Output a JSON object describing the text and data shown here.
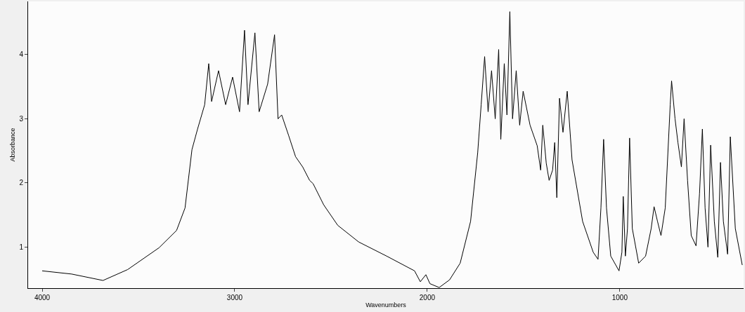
{
  "chart_data": {
    "type": "line",
    "xlabel": "Wavenumbers",
    "ylabel": "Absorbance",
    "xlim": [
      4073,
      357
    ],
    "ylim": [
      0.36,
      4.83
    ],
    "xticks": [
      4000,
      3000,
      2000,
      1000
    ],
    "yticks": [
      1,
      2,
      3,
      4
    ],
    "marker": "none",
    "line_style": "solid",
    "x": [
      4000,
      3847,
      3684,
      3556,
      3393,
      3302,
      3258,
      3222,
      3193,
      3156,
      3135,
      3120,
      3084,
      3047,
      3011,
      2975,
      2949,
      2931,
      2895,
      2873,
      2829,
      2793,
      2775,
      2756,
      2720,
      2684,
      2647,
      2611,
      2593,
      2538,
      2465,
      2356,
      2211,
      2066,
      2036,
      2007,
      1986,
      1938,
      1884,
      1829,
      1775,
      1738,
      1720,
      1702,
      1684,
      1666,
      1647,
      1629,
      1618,
      1600,
      1586,
      1571,
      1557,
      1538,
      1520,
      1502,
      1466,
      1429,
      1411,
      1400,
      1382,
      1367,
      1349,
      1338,
      1327,
      1313,
      1295,
      1273,
      1248,
      1193,
      1138,
      1113,
      1098,
      1084,
      1069,
      1047,
      1004,
      989,
      982,
      971,
      960,
      949,
      935,
      902,
      866,
      837,
      822,
      804,
      786,
      764,
      738,
      731,
      713,
      698,
      680,
      666,
      648,
      629,
      604,
      586,
      571,
      557,
      542,
      528,
      509,
      491,
      477,
      462,
      440,
      426,
      400,
      364
    ],
    "series": [
      {
        "color": "#000000",
        "values": [
          0.63,
          0.58,
          0.48,
          0.65,
          0.99,
          1.26,
          1.61,
          2.52,
          2.84,
          3.22,
          3.86,
          3.27,
          3.75,
          3.22,
          3.65,
          3.11,
          4.38,
          3.22,
          4.34,
          3.11,
          3.54,
          4.31,
          3.0,
          3.06,
          2.74,
          2.41,
          2.25,
          2.04,
          1.99,
          1.66,
          1.34,
          1.08,
          0.86,
          0.63,
          0.46,
          0.57,
          0.43,
          0.37,
          0.49,
          0.75,
          1.4,
          2.47,
          3.22,
          3.97,
          3.11,
          3.75,
          3.0,
          4.08,
          2.68,
          3.86,
          3.06,
          4.67,
          3.0,
          3.75,
          2.9,
          3.43,
          2.9,
          2.58,
          2.2,
          2.9,
          2.31,
          2.04,
          2.2,
          2.63,
          1.77,
          3.32,
          2.79,
          3.43,
          2.36,
          1.4,
          0.92,
          0.81,
          1.61,
          2.68,
          1.61,
          0.86,
          0.63,
          0.92,
          1.79,
          0.86,
          1.29,
          2.7,
          1.29,
          0.75,
          0.86,
          1.29,
          1.63,
          1.4,
          1.18,
          1.61,
          3.22,
          3.59,
          3.0,
          2.63,
          2.25,
          3.0,
          2.04,
          1.18,
          1.02,
          1.83,
          2.84,
          1.61,
          1.0,
          2.59,
          1.4,
          0.84,
          2.32,
          1.4,
          0.89,
          2.72,
          1.29,
          0.72
        ]
      }
    ]
  }
}
